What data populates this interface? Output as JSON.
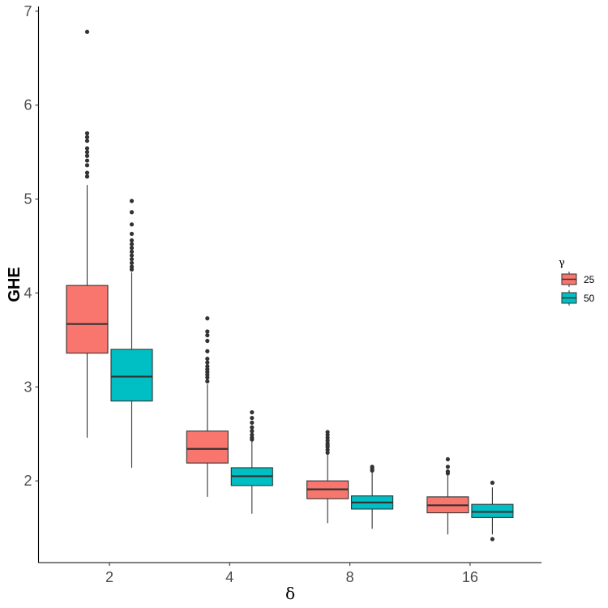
{
  "chart_data": {
    "type": "boxplot",
    "title": "",
    "xlabel": "δ",
    "ylabel": "GHE",
    "categories": [
      "2",
      "4",
      "8",
      "16"
    ],
    "ylim": [
      1.13,
      7.05
    ],
    "yticks": [
      2,
      3,
      4,
      5,
      6,
      7
    ],
    "grid": false,
    "legend": {
      "title": "γ",
      "position": "right"
    },
    "series": [
      {
        "name": "25",
        "color": "#F8766D",
        "boxes": [
          {
            "min": 2.46,
            "q1": 3.36,
            "median": 3.67,
            "q3": 4.08,
            "max": 5.15,
            "outliers": [
              5.24,
              5.28,
              5.36,
              5.41,
              5.46,
              5.5,
              5.54,
              5.62,
              5.66,
              5.7,
              6.78
            ]
          },
          {
            "min": 1.83,
            "q1": 2.19,
            "median": 2.34,
            "q3": 2.53,
            "max": 3.03,
            "outliers": [
              3.06,
              3.1,
              3.13,
              3.16,
              3.19,
              3.22,
              3.26,
              3.3,
              3.38,
              3.49,
              3.55,
              3.59,
              3.73
            ]
          },
          {
            "min": 1.55,
            "q1": 1.81,
            "median": 1.91,
            "q3": 2.0,
            "max": 2.28,
            "outliers": [
              2.3,
              2.33,
              2.36,
              2.38,
              2.4,
              2.43,
              2.46,
              2.49,
              2.52
            ]
          },
          {
            "min": 1.43,
            "q1": 1.66,
            "median": 1.74,
            "q3": 1.83,
            "max": 2.06,
            "outliers": [
              2.08,
              2.1,
              2.15,
              2.23
            ]
          }
        ]
      },
      {
        "name": "50",
        "color": "#00BFC4",
        "boxes": [
          {
            "min": 2.14,
            "q1": 2.85,
            "median": 3.11,
            "q3": 3.4,
            "max": 4.22,
            "outliers": [
              4.25,
              4.28,
              4.32,
              4.36,
              4.4,
              4.44,
              4.48,
              4.52,
              4.56,
              4.63,
              4.73,
              4.86,
              4.98
            ]
          },
          {
            "min": 1.65,
            "q1": 1.95,
            "median": 2.05,
            "q3": 2.14,
            "max": 2.42,
            "outliers": [
              2.44,
              2.46,
              2.49,
              2.53,
              2.57,
              2.62,
              2.67,
              2.73
            ]
          },
          {
            "min": 1.49,
            "q1": 1.7,
            "median": 1.77,
            "q3": 1.84,
            "max": 2.09,
            "outliers": [
              2.11,
              2.13,
              2.15
            ]
          },
          {
            "min": 1.43,
            "q1": 1.61,
            "median": 1.67,
            "q3": 1.75,
            "max": 1.93,
            "outliers": [
              1.38,
              1.98
            ]
          }
        ]
      }
    ]
  }
}
